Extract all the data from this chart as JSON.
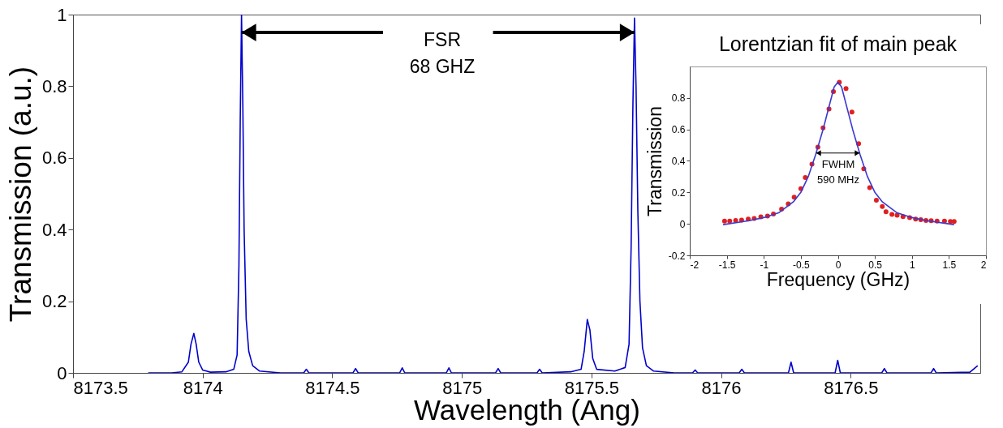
{
  "chart_data": [
    {
      "type": "line",
      "xlabel": "Wavelength (Ang)",
      "ylabel": "Transmission (a.u.)",
      "xlim": [
        8173.5,
        8177
      ],
      "ylim": [
        0,
        1
      ],
      "xticks": [
        8173.5,
        8174,
        8174.5,
        8175,
        8175.5,
        8176,
        8176.5
      ],
      "yticks": [
        0,
        0.2,
        0.4,
        0.6,
        0.8,
        1
      ],
      "marker": "none",
      "series": [
        {
          "color": "#0000cc",
          "x": [
            8173.79,
            8173.88,
            8173.92,
            8173.945,
            8173.955,
            8173.966,
            8173.975,
            8173.985,
            8174.0,
            8174.03,
            8174.09,
            8174.12,
            8174.133,
            8174.14,
            8174.145,
            8174.15,
            8174.155,
            8174.16,
            8174.168,
            8174.178,
            8174.193,
            8174.22,
            8174.3,
            8174.39,
            8174.4,
            8174.41,
            8174.58,
            8174.59,
            8174.6,
            8174.76,
            8174.77,
            8174.78,
            8174.94,
            8174.95,
            8174.96,
            8175.13,
            8175.14,
            8175.15,
            8175.29,
            8175.3,
            8175.31,
            8175.42,
            8175.46,
            8175.472,
            8175.484,
            8175.494,
            8175.505,
            8175.52,
            8175.59,
            8175.63,
            8175.645,
            8175.653,
            8175.66,
            8175.666,
            8175.672,
            8175.679,
            8175.687,
            8175.697,
            8175.712,
            8175.74,
            8175.82,
            8175.89,
            8175.9,
            8175.91,
            8176.07,
            8176.08,
            8176.09,
            8176.26,
            8176.27,
            8176.28,
            8176.44,
            8176.45,
            8176.46,
            8176.62,
            8176.63,
            8176.64,
            8176.81,
            8176.82,
            8176.83,
            8176.96,
            8176.99
          ],
          "values": [
            0,
            0,
            0.003,
            0.03,
            0.08,
            0.11,
            0.08,
            0.03,
            0.008,
            0.002,
            0.003,
            0.01,
            0.05,
            0.3,
            0.7,
            1,
            0.75,
            0.4,
            0.15,
            0.06,
            0.02,
            0.005,
            0,
            0,
            0.01,
            0,
            0,
            0.012,
            0,
            0,
            0.014,
            0,
            0,
            0.014,
            0,
            0,
            0.012,
            0,
            0,
            0.01,
            0,
            0.003,
            0.01,
            0.06,
            0.149,
            0.12,
            0.04,
            0.01,
            0.005,
            0.015,
            0.08,
            0.35,
            0.75,
            0.99,
            0.8,
            0.45,
            0.2,
            0.07,
            0.02,
            0.005,
            0,
            0,
            0.008,
            0,
            0,
            0.01,
            0,
            0,
            0.03,
            0,
            0,
            0.035,
            0,
            0,
            0.012,
            0,
            0,
            0.012,
            0,
            0.002,
            0.02
          ]
        }
      ],
      "annotations": [
        "FSR",
        "68 GHZ"
      ]
    },
    {
      "type": "scatter",
      "title": "Lorentzian fit of main peak",
      "xlabel": "Frequency (GHz)",
      "ylabel": "Transmission",
      "xlim": [
        -2,
        2
      ],
      "ylim": [
        -0.2,
        1
      ],
      "xticks": [
        -2,
        -1.5,
        -1,
        -0.5,
        0,
        0.5,
        1,
        1.5,
        2
      ],
      "yticks": [
        -0.2,
        0,
        0.2,
        0.4,
        0.6,
        0.8
      ],
      "series": [
        {
          "marker": "circle",
          "color": "#e02020",
          "x": [
            -1.53,
            -1.46,
            -1.38,
            -1.3,
            -1.21,
            -1.13,
            -1.04,
            -0.95,
            -0.87,
            -0.76,
            -0.67,
            -0.59,
            -0.5,
            -0.44,
            -0.35,
            -0.27,
            -0.2,
            -0.12,
            -0.06,
            0.02,
            0.11,
            0.19,
            0.28,
            0.35,
            0.43,
            0.52,
            0.6,
            0.65,
            0.73,
            0.8,
            0.88,
            0.97,
            1.05,
            1.12,
            1.19,
            1.26,
            1.34,
            1.44,
            1.52,
            1.57
          ],
          "values": [
            0.017,
            0.017,
            0.022,
            0.024,
            0.03,
            0.034,
            0.045,
            0.05,
            0.063,
            0.094,
            0.127,
            0.17,
            0.224,
            0.295,
            0.38,
            0.488,
            0.61,
            0.73,
            0.84,
            0.9,
            0.86,
            0.71,
            0.51,
            0.35,
            0.23,
            0.15,
            0.11,
            0.077,
            0.06,
            0.055,
            0.046,
            0.04,
            0.03,
            0.026,
            0.022,
            0.02,
            0.017,
            0.017,
            0.015,
            0.015
          ]
        },
        {
          "type": "line",
          "marker": "none",
          "color": "#3a3ad0",
          "x": [
            -1.55,
            -1.2,
            -1.0,
            -0.8,
            -0.6,
            -0.5,
            -0.4,
            -0.3,
            -0.2,
            -0.1,
            -0.05,
            0,
            0.05,
            0.1,
            0.2,
            0.3,
            0.4,
            0.5,
            0.6,
            0.8,
            1.0,
            1.2,
            1.57
          ],
          "values": [
            -0.005,
            0.02,
            0.04,
            0.07,
            0.14,
            0.2,
            0.3,
            0.44,
            0.6,
            0.78,
            0.87,
            0.9,
            0.87,
            0.78,
            0.6,
            0.44,
            0.3,
            0.2,
            0.14,
            0.07,
            0.04,
            0.02,
            -0.005
          ]
        }
      ],
      "annotations": [
        "FWHM",
        "590 MHz"
      ]
    }
  ]
}
